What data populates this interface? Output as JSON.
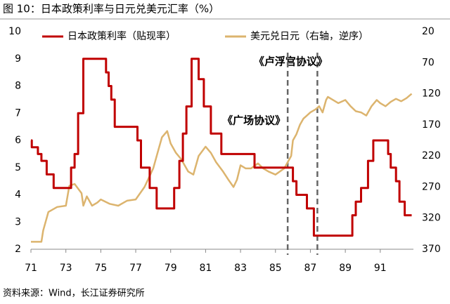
{
  "chart_data": {
    "type": "line",
    "title": "图 10：日本政策利率与日元兑美元汇率（%）",
    "source": "资料来源：Wind，长江证券研究所",
    "xlim": [
      71,
      92.9
    ],
    "xticks": [
      71,
      73,
      75,
      77,
      79,
      81,
      83,
      85,
      87,
      89,
      91
    ],
    "ylim": [
      2,
      10
    ],
    "yticks": [
      2,
      3,
      4,
      5,
      6,
      7,
      8,
      9,
      10
    ],
    "y2lim": [
      370,
      20
    ],
    "y2ticks": [
      20,
      70,
      120,
      170,
      220,
      270,
      320,
      370
    ],
    "legend": "top",
    "annotations": [
      {
        "text": "《卢浮宫协议》",
        "x": 87.4
      },
      {
        "text": "《广场协议》",
        "x": 85.7
      }
    ],
    "series": [
      {
        "name": "日本政策利率（贴现率）",
        "color": "#c00000",
        "x": [
          71,
          71.05,
          71.05,
          71.4,
          71.4,
          71.6,
          71.6,
          71.9,
          71.9,
          72.3,
          72.3,
          73.3,
          73.3,
          73.5,
          73.5,
          73.7,
          73.7,
          74.0,
          74.0,
          75.3,
          75.3,
          75.45,
          75.45,
          75.6,
          75.6,
          75.8,
          75.8,
          77.1,
          77.1,
          77.3,
          77.3,
          77.8,
          77.8,
          78.2,
          78.2,
          79.2,
          79.2,
          79.5,
          79.5,
          79.7,
          79.7,
          79.9,
          79.9,
          80.2,
          80.2,
          80.6,
          80.6,
          80.9,
          80.9,
          81.3,
          81.3,
          81.9,
          81.9,
          83.8,
          83.8,
          86.0,
          86.0,
          86.2,
          86.2,
          86.8,
          86.8,
          87.2,
          87.2,
          89.4,
          89.4,
          89.6,
          89.6,
          89.9,
          89.9,
          90.3,
          90.3,
          90.6,
          90.6,
          91.45,
          91.45,
          91.6,
          91.6,
          91.9,
          91.9,
          92.1,
          92.1,
          92.4,
          92.4,
          92.8
        ],
        "values": [
          6,
          6,
          5.75,
          5.75,
          5.5,
          5.5,
          5.25,
          5.25,
          4.75,
          4.75,
          4.25,
          4.25,
          5,
          5,
          5.5,
          5.5,
          7,
          7,
          9,
          9,
          8.5,
          8.5,
          8,
          8,
          7.5,
          7.5,
          6.5,
          6.5,
          6,
          6,
          5,
          5,
          4.25,
          4.25,
          3.5,
          3.5,
          4.25,
          4.25,
          5.25,
          5.25,
          6.25,
          6.25,
          7.25,
          7.25,
          9,
          9,
          8.25,
          8.25,
          7.25,
          7.25,
          6.25,
          6.25,
          5.5,
          5.5,
          5,
          5,
          4.5,
          4.5,
          4,
          4,
          3.5,
          3.5,
          2.5,
          2.5,
          3.25,
          3.25,
          3.75,
          3.75,
          4.25,
          4.25,
          5.25,
          5.25,
          6,
          6,
          5.5,
          5.5,
          5,
          5,
          4.5,
          4.5,
          3.75,
          3.75,
          3.25,
          3.25
        ]
      },
      {
        "name": "美元兑日元（右轴，逆序）",
        "color": "#dcb46e",
        "axis": "y2",
        "x": [
          71,
          71.6,
          71.7,
          72,
          72.5,
          73,
          73.2,
          73.5,
          73.9,
          74,
          74.2,
          74.5,
          74.8,
          75,
          75.5,
          76,
          76.5,
          77,
          77.5,
          78,
          78.3,
          78.5,
          78.8,
          79,
          79.3,
          79.6,
          80,
          80.3,
          80.6,
          81,
          81.3,
          81.6,
          82,
          82.3,
          82.6,
          82.8,
          83,
          83.3,
          83.6,
          84,
          84.3,
          84.6,
          85,
          85.5,
          85.7,
          85.9,
          86,
          86.2,
          86.4,
          86.6,
          86.8,
          87,
          87.3,
          87.5,
          87.7,
          87.9,
          88,
          88.3,
          88.6,
          89,
          89.3,
          89.6,
          89.9,
          90.2,
          90.5,
          90.8,
          91,
          91.3,
          91.6,
          91.9,
          92.2,
          92.5,
          92.8
        ],
        "values": [
          358,
          358,
          340,
          310,
          302,
          300,
          268,
          265,
          280,
          300,
          285,
          300,
          295,
          290,
          297,
          300,
          292,
          290,
          270,
          240,
          210,
          190,
          180,
          200,
          215,
          225,
          245,
          250,
          220,
          205,
          215,
          230,
          245,
          258,
          270,
          258,
          235,
          240,
          240,
          232,
          240,
          245,
          250,
          240,
          230,
          220,
          195,
          185,
          170,
          160,
          155,
          150,
          145,
          140,
          150,
          130,
          125,
          130,
          135,
          130,
          140,
          148,
          150,
          155,
          140,
          130,
          135,
          140,
          133,
          128,
          132,
          127,
          120
        ]
      }
    ]
  }
}
